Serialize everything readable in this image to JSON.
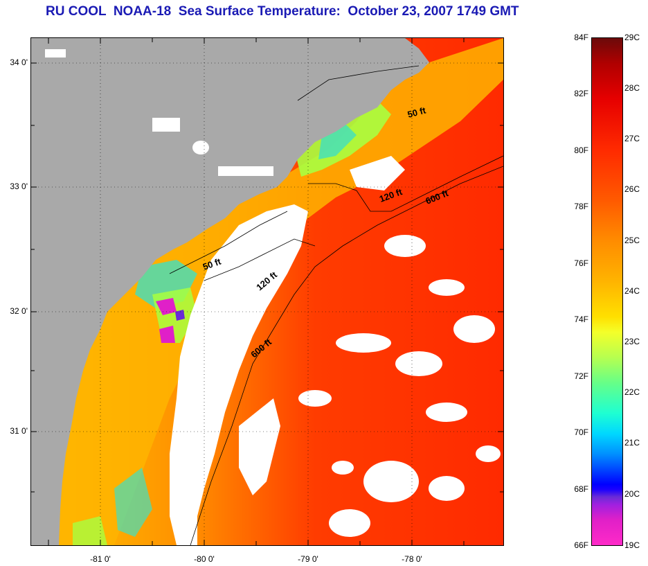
{
  "title": "RU COOL  NOAA-18  Sea Surface Temperature:  October 23, 2007 1749 GMT",
  "map": {
    "latitude_labels": [
      "34 0'",
      "33 0'",
      "32 0'",
      "31 0'"
    ],
    "longitude_labels": [
      "-81 0'",
      "-80 0'",
      "-79 0'",
      "-78 0'"
    ],
    "contour_labels": {
      "north_50": "50 ft",
      "north_120": "120 ft",
      "north_600": "600 ft",
      "south_50": "50 ft",
      "south_120": "120 ft",
      "south_600": "600 ft"
    },
    "land_color": "#a9a9a9",
    "cloud_color": "#ffffff"
  },
  "colorbar": {
    "fahrenheit_labels": [
      "84F",
      "82F",
      "80F",
      "78F",
      "76F",
      "74F",
      "72F",
      "70F",
      "68F",
      "66F"
    ],
    "celsius_labels": [
      "29C",
      "28C",
      "27C",
      "26C",
      "25C",
      "24C",
      "23C",
      "22C",
      "21C",
      "20C",
      "19C"
    ]
  }
}
